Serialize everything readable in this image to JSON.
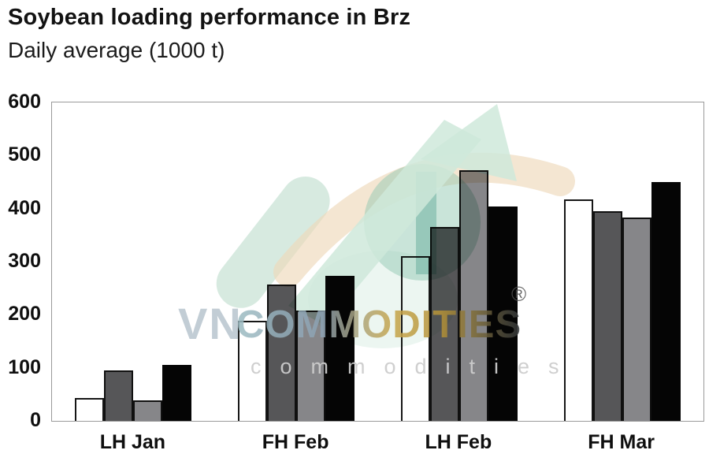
{
  "header": {
    "title": "Soybean loading performance in Brz",
    "subtitle": "Daily average (1000 t)"
  },
  "chart_data": {
    "type": "bar",
    "title": "Soybean loading performance in Brz",
    "subtitle": "Daily average (1000 t)",
    "categories": [
      "LH Jan",
      "FH Feb",
      "LH Feb",
      "FH Mar"
    ],
    "series": [
      {
        "name": "white-bar",
        "color": "#ffffff",
        "border": "#161616",
        "values": [
          43,
          188,
          310,
          417
        ]
      },
      {
        "name": "dark-gray-bar",
        "color": "#565658",
        "border": "#101010",
        "values": [
          95,
          257,
          365,
          395
        ]
      },
      {
        "name": "medium-gray-bar",
        "color": "#868689",
        "border": "#101010",
        "values": [
          38,
          208,
          472,
          383
        ]
      },
      {
        "name": "black-bar",
        "color": "#050505",
        "border": "#050505",
        "values": [
          106,
          273,
          404,
          450
        ]
      }
    ],
    "ylim": [
      0,
      600
    ],
    "yticks": [
      0,
      100,
      200,
      300,
      400,
      500,
      600
    ],
    "xlabel": "",
    "ylabel": "",
    "legend": "none",
    "grid": false
  },
  "watermark": {
    "brand_prefix": "VN",
    "brand_word": "COMMODITIES",
    "registered_mark": "®",
    "sub_text": "commodities"
  },
  "colors": {
    "background": "#ffffff",
    "axis_border": "#9a9a9a",
    "text": "#0f0f0f",
    "watermark_green": "#cfe9da",
    "watermark_teal": "#93cab4",
    "watermark_peach": "#eed9ba"
  }
}
